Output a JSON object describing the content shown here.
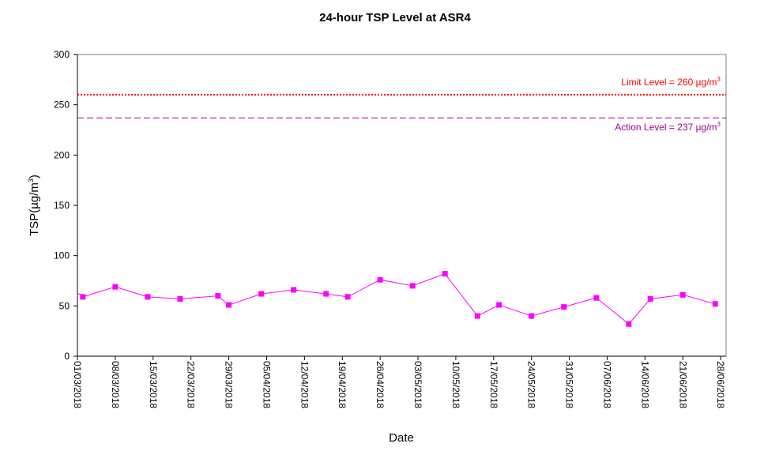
{
  "chart_data": {
    "type": "line",
    "title": "24-hour TSP Level at ASR4",
    "xlabel": "Date",
    "ylabel": "TSP(µg/m",
    "ylabel_sup": "3",
    "ylabel_end": ")",
    "ylim": [
      0,
      300
    ],
    "yticks": [
      0,
      50,
      100,
      150,
      200,
      250,
      300
    ],
    "xlim": [
      "2018-03-01",
      "2018-06-29"
    ],
    "xticks": [
      {
        "date": "2018-03-01",
        "label": "01/03/2018"
      },
      {
        "date": "2018-03-08",
        "label": "08/03/2018"
      },
      {
        "date": "2018-03-15",
        "label": "15/03/2018"
      },
      {
        "date": "2018-03-22",
        "label": "22/03/2018"
      },
      {
        "date": "2018-03-29",
        "label": "29/03/2018"
      },
      {
        "date": "2018-04-05",
        "label": "05/04/2018"
      },
      {
        "date": "2018-04-12",
        "label": "12/04/2018"
      },
      {
        "date": "2018-04-19",
        "label": "19/04/2018"
      },
      {
        "date": "2018-04-26",
        "label": "26/04/2018"
      },
      {
        "date": "2018-05-03",
        "label": "03/05/2018"
      },
      {
        "date": "2018-05-10",
        "label": "10/05/2018"
      },
      {
        "date": "2018-05-17",
        "label": "17/05/2018"
      },
      {
        "date": "2018-05-24",
        "label": "24/05/2018"
      },
      {
        "date": "2018-05-31",
        "label": "31/05/2018"
      },
      {
        "date": "2018-06-07",
        "label": "07/06/2018"
      },
      {
        "date": "2018-06-14",
        "label": "14/06/2018"
      },
      {
        "date": "2018-06-21",
        "label": "21/06/2018"
      },
      {
        "date": "2018-06-28",
        "label": "28/06/2018"
      }
    ],
    "series": [
      {
        "color": "#ff00ff",
        "points": [
          {
            "x": "2018-03-02",
            "y": 59
          },
          {
            "x": "2018-03-08",
            "y": 69
          },
          {
            "x": "2018-03-14",
            "y": 59
          },
          {
            "x": "2018-03-20",
            "y": 57
          },
          {
            "x": "2018-03-27",
            "y": 60
          },
          {
            "x": "2018-03-29",
            "y": 51
          },
          {
            "x": "2018-04-04",
            "y": 62
          },
          {
            "x": "2018-04-10",
            "y": 66
          },
          {
            "x": "2018-04-16",
            "y": 62
          },
          {
            "x": "2018-04-20",
            "y": 59
          },
          {
            "x": "2018-04-26",
            "y": 76
          },
          {
            "x": "2018-05-02",
            "y": 70
          },
          {
            "x": "2018-05-08",
            "y": 82
          },
          {
            "x": "2018-05-14",
            "y": 40
          },
          {
            "x": "2018-05-18",
            "y": 51
          },
          {
            "x": "2018-05-24",
            "y": 40
          },
          {
            "x": "2018-05-30",
            "y": 49
          },
          {
            "x": "2018-06-05",
            "y": 58
          },
          {
            "x": "2018-06-11",
            "y": 32
          },
          {
            "x": "2018-06-15",
            "y": 57
          },
          {
            "x": "2018-06-21",
            "y": 61
          },
          {
            "x": "2018-06-27",
            "y": 52
          }
        ]
      }
    ],
    "reference_lines": [
      {
        "label_prefix": "Limit Level  = 260 µg/m",
        "label_sup": "3",
        "value": 260,
        "color": "#ff0000",
        "style": "dotted"
      },
      {
        "label_prefix": "Action Level  = 237 µg/m",
        "label_sup": "3",
        "value": 237,
        "color": "#990099",
        "style": "dashed"
      }
    ],
    "grid": false,
    "legend": "none"
  }
}
